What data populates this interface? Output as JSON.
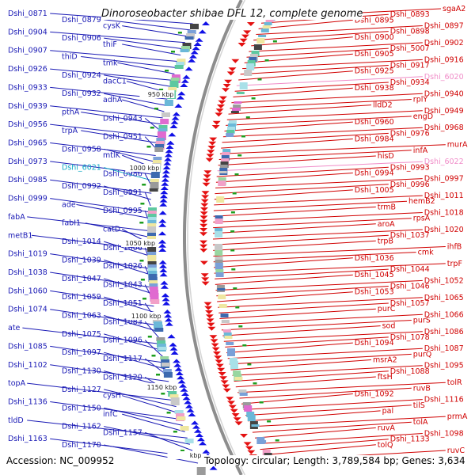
{
  "title": "Dinoroseobacter shibae DFL 12, complete genome",
  "footer": {
    "accession": "Accession: NC_009952",
    "summary": "Topology: circular; Length: 3,789,584 bp; Genes: 3,634"
  },
  "scale_labels": [
    "950 kbp",
    "1000 kbp",
    "1050 kbp",
    "1100 kbp",
    "1150 kbp",
    "kbp"
  ],
  "left_labels": [
    {
      "text": "Dshi_0871",
      "color": "#1a1ab5"
    },
    {
      "text": "Dshi_0879",
      "color": "#1a1ab5"
    },
    {
      "text": "cysK",
      "color": "#1a1ab5"
    },
    {
      "text": "Dshi_0904",
      "color": "#1a1ab5"
    },
    {
      "text": "Dshi_0906",
      "color": "#1a1ab5"
    },
    {
      "text": "thiF",
      "color": "#1a1ab5"
    },
    {
      "text": "Dshi_0907",
      "color": "#1a1ab5"
    },
    {
      "text": "thiD",
      "color": "#1a1ab5"
    },
    {
      "text": "tmk",
      "color": "#1a1ab5"
    },
    {
      "text": "Dshi_0926",
      "color": "#1a1ab5"
    },
    {
      "text": "Dshi_0924",
      "color": "#1a1ab5"
    },
    {
      "text": "dacC1",
      "color": "#1a1ab5"
    },
    {
      "text": "Dshi_0933",
      "color": "#1a1ab5"
    },
    {
      "text": "Dshi_0932",
      "color": "#1a1ab5"
    },
    {
      "text": "adhA",
      "color": "#1a1ab5"
    },
    {
      "text": "Dshi_0939",
      "color": "#1a1ab5"
    },
    {
      "text": "pthA",
      "color": "#1a1ab5"
    },
    {
      "text": "Dshi_0943",
      "color": "#1a1ab5"
    },
    {
      "text": "Dshi_0956",
      "color": "#1a1ab5"
    },
    {
      "text": "trpA",
      "color": "#1a1ab5"
    },
    {
      "text": "Dshi_0951",
      "color": "#1a1ab5"
    },
    {
      "text": "Dshi_0965",
      "color": "#1a1ab5"
    },
    {
      "text": "Dshi_0958",
      "color": "#1a1ab5"
    },
    {
      "text": "mtlK",
      "color": "#1a1ab5"
    },
    {
      "text": "Dshi_0973",
      "color": "#1a1ab5"
    },
    {
      "text": "Dshi_6021",
      "color": "#11a9c4"
    },
    {
      "text": "Dshi_0986",
      "color": "#1a1ab5"
    },
    {
      "text": "Dshi_0985",
      "color": "#1a1ab5"
    },
    {
      "text": "Dshi_0992",
      "color": "#1a1ab5"
    },
    {
      "text": "Dshi_0991",
      "color": "#1a1ab5"
    },
    {
      "text": "Dshi_0999",
      "color": "#1a1ab5"
    },
    {
      "text": "ade",
      "color": "#1a1ab5"
    },
    {
      "text": "Dshi_0995",
      "color": "#1a1ab5"
    },
    {
      "text": "fabA",
      "color": "#1a1ab5"
    },
    {
      "text": "fabI1",
      "color": "#1a1ab5"
    },
    {
      "text": "catD",
      "color": "#1a1ab5"
    },
    {
      "text": "metB1",
      "color": "#1a1ab5"
    },
    {
      "text": "Dshi_1014",
      "color": "#1a1ab5"
    },
    {
      "text": "Dshi_1006",
      "color": "#1a1ab5"
    },
    {
      "text": "Dshi_1019",
      "color": "#1a1ab5"
    },
    {
      "text": "Dshi_1039",
      "color": "#1a1ab5"
    },
    {
      "text": "Dshi_1026",
      "color": "#1a1ab5"
    },
    {
      "text": "Dshi_1038",
      "color": "#1a1ab5"
    },
    {
      "text": "Dshi_1047",
      "color": "#1a1ab5"
    },
    {
      "text": "Dshi_1043",
      "color": "#1a1ab5"
    },
    {
      "text": "Dshi_1060",
      "color": "#1a1ab5"
    },
    {
      "text": "Dshi_1059",
      "color": "#1a1ab5"
    },
    {
      "text": "Dshi_1051",
      "color": "#1a1ab5"
    },
    {
      "text": "Dshi_1074",
      "color": "#1a1ab5"
    },
    {
      "text": "Dshi_1063",
      "color": "#1a1ab5"
    },
    {
      "text": "Dshi_1083",
      "color": "#1a1ab5"
    },
    {
      "text": "ate",
      "color": "#1a1ab5"
    },
    {
      "text": "Dshi_1075",
      "color": "#1a1ab5"
    },
    {
      "text": "Dshi_1096",
      "color": "#1a1ab5"
    },
    {
      "text": "Dshi_1085",
      "color": "#1a1ab5"
    },
    {
      "text": "Dshi_1097",
      "color": "#1a1ab5"
    },
    {
      "text": "Dshi_1117",
      "color": "#1a1ab5"
    },
    {
      "text": "Dshi_1102",
      "color": "#1a1ab5"
    },
    {
      "text": "Dshi_1130",
      "color": "#1a1ab5"
    },
    {
      "text": "Dshi_1120",
      "color": "#1a1ab5"
    },
    {
      "text": "topA",
      "color": "#1a1ab5"
    },
    {
      "text": "Dshi_1127",
      "color": "#1a1ab5"
    },
    {
      "text": "cysH",
      "color": "#1a1ab5"
    },
    {
      "text": "Dshi_1136",
      "color": "#1a1ab5"
    },
    {
      "text": "Dshi_1150",
      "color": "#1a1ab5"
    },
    {
      "text": "infC",
      "color": "#1a1ab5"
    },
    {
      "text": "tldD",
      "color": "#1a1ab5"
    },
    {
      "text": "Dshi_1162",
      "color": "#1a1ab5"
    },
    {
      "text": "Dshi_1157",
      "color": "#1a1ab5"
    },
    {
      "text": "Dshi_1163",
      "color": "#1a1ab5"
    },
    {
      "text": "Dshi_1170",
      "color": "#1a1ab5"
    }
  ],
  "right_labels": [
    {
      "text": "sgaA2",
      "color": "#d00000"
    },
    {
      "text": "Dshi_0893",
      "color": "#d00000"
    },
    {
      "text": "Dshi_0895",
      "color": "#d00000"
    },
    {
      "text": "Dshi_0897",
      "color": "#d00000"
    },
    {
      "text": "Dshi_0898",
      "color": "#d00000"
    },
    {
      "text": "Dshi_0900",
      "color": "#d00000"
    },
    {
      "text": "Dshi_0902",
      "color": "#d00000"
    },
    {
      "text": "Dshi_5007",
      "color": "#d00000"
    },
    {
      "text": "Dshi_0905",
      "color": "#d00000"
    },
    {
      "text": "Dshi_0916",
      "color": "#d00000"
    },
    {
      "text": "Dshi_0917",
      "color": "#d00000"
    },
    {
      "text": "Dshi_0925",
      "color": "#d00000"
    },
    {
      "text": "Dshi_6020",
      "color": "#f08cc8"
    },
    {
      "text": "Dshi_0934",
      "color": "#d00000"
    },
    {
      "text": "Dshi_0938",
      "color": "#d00000"
    },
    {
      "text": "Dshi_0940",
      "color": "#d00000"
    },
    {
      "text": "rplY",
      "color": "#d00000"
    },
    {
      "text": "lldD2",
      "color": "#d00000"
    },
    {
      "text": "Dshi_0949",
      "color": "#d00000"
    },
    {
      "text": "engD",
      "color": "#d00000"
    },
    {
      "text": "Dshi_0960",
      "color": "#d00000"
    },
    {
      "text": "Dshi_0968",
      "color": "#d00000"
    },
    {
      "text": "Dshi_0976",
      "color": "#d00000"
    },
    {
      "text": "Dshi_0984",
      "color": "#d00000"
    },
    {
      "text": "murA",
      "color": "#d00000"
    },
    {
      "text": "infA",
      "color": "#d00000"
    },
    {
      "text": "hisD",
      "color": "#d00000"
    },
    {
      "text": "Dshi_6022",
      "color": "#f08cc8"
    },
    {
      "text": "Dshi_0993",
      "color": "#d00000"
    },
    {
      "text": "Dshi_0994",
      "color": "#d00000"
    },
    {
      "text": "Dshi_0997",
      "color": "#d00000"
    },
    {
      "text": "Dshi_0996",
      "color": "#d00000"
    },
    {
      "text": "Dshi_1005",
      "color": "#d00000"
    },
    {
      "text": "Dshi_1011",
      "color": "#d00000"
    },
    {
      "text": "hemB2",
      "color": "#d00000"
    },
    {
      "text": "trmB",
      "color": "#d00000"
    },
    {
      "text": "Dshi_1018",
      "color": "#d00000"
    },
    {
      "text": "rpsA",
      "color": "#d00000"
    },
    {
      "text": "aroA",
      "color": "#d00000"
    },
    {
      "text": "Dshi_1020",
      "color": "#d00000"
    },
    {
      "text": "Dshi_1037",
      "color": "#d00000"
    },
    {
      "text": "trpB",
      "color": "#d00000"
    },
    {
      "text": "ihfB",
      "color": "#d00000"
    },
    {
      "text": "cmk",
      "color": "#d00000"
    },
    {
      "text": "Dshi_1036",
      "color": "#d00000"
    },
    {
      "text": "trpF",
      "color": "#d00000"
    },
    {
      "text": "Dshi_1044",
      "color": "#d00000"
    },
    {
      "text": "Dshi_1045",
      "color": "#d00000"
    },
    {
      "text": "Dshi_1052",
      "color": "#d00000"
    },
    {
      "text": "Dshi_1046",
      "color": "#d00000"
    },
    {
      "text": "Dshi_1053",
      "color": "#d00000"
    },
    {
      "text": "Dshi_1065",
      "color": "#d00000"
    },
    {
      "text": "Dshi_1057",
      "color": "#d00000"
    },
    {
      "text": "purC",
      "color": "#d00000"
    },
    {
      "text": "Dshi_1066",
      "color": "#d00000"
    },
    {
      "text": "purS",
      "color": "#d00000"
    },
    {
      "text": "sod",
      "color": "#d00000"
    },
    {
      "text": "Dshi_1086",
      "color": "#d00000"
    },
    {
      "text": "Dshi_1078",
      "color": "#d00000"
    },
    {
      "text": "Dshi_1094",
      "color": "#d00000"
    },
    {
      "text": "Dshi_1087",
      "color": "#d00000"
    },
    {
      "text": "purQ",
      "color": "#d00000"
    },
    {
      "text": "msrA2",
      "color": "#d00000"
    },
    {
      "text": "Dshi_1095",
      "color": "#d00000"
    },
    {
      "text": "Dshi_1088",
      "color": "#d00000"
    },
    {
      "text": "ftsH",
      "color": "#d00000"
    },
    {
      "text": "tolR",
      "color": "#d00000"
    },
    {
      "text": "ruvB",
      "color": "#d00000"
    },
    {
      "text": "Dshi_1092",
      "color": "#d00000"
    },
    {
      "text": "Dshi_1116",
      "color": "#d00000"
    },
    {
      "text": "tilS",
      "color": "#d00000"
    },
    {
      "text": "pal",
      "color": "#d00000"
    },
    {
      "text": "prmA",
      "color": "#d00000"
    },
    {
      "text": "tolA",
      "color": "#d00000"
    },
    {
      "text": "ruvA",
      "color": "#d00000"
    },
    {
      "text": "Dshi_1098",
      "color": "#d00000"
    },
    {
      "text": "Dshi_1133",
      "color": "#d00000"
    },
    {
      "text": "tolQ",
      "color": "#d00000"
    },
    {
      "text": "ruvC",
      "color": "#d00000"
    }
  ]
}
